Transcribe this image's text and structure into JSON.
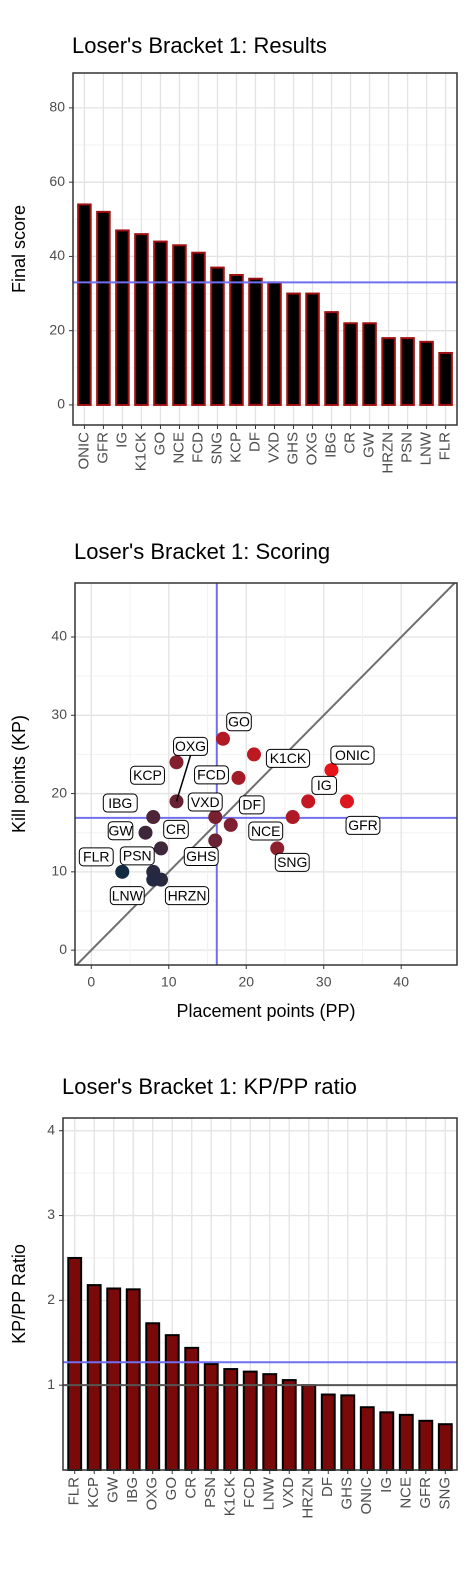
{
  "chart_data": [
    {
      "type": "bar",
      "title": "Loser's Bracket 1: Results",
      "y_label": "Final score",
      "categories": [
        "ONIC",
        "GFR",
        "IG",
        "K1CK",
        "GO",
        "NCE",
        "FCD",
        "SNG",
        "KCP",
        "DF",
        "VXD",
        "GHS",
        "OXG",
        "IBG",
        "CR",
        "GW",
        "HRZN",
        "PSN",
        "LNW",
        "FLR"
      ],
      "values": [
        54,
        52,
        47,
        46,
        44,
        43,
        41,
        37,
        35,
        34,
        33,
        30,
        30,
        25,
        22,
        22,
        18,
        18,
        17,
        14
      ],
      "color": "#000000",
      "edge_color": "#a01010",
      "ylim": [
        -5.4,
        89.4
      ],
      "yticks": [
        0,
        20,
        40,
        60,
        80
      ],
      "grid": true,
      "reference_lines": [
        {
          "value": 33,
          "color": "#7070ee"
        }
      ]
    },
    {
      "type": "scatter",
      "title": "Loser's Bracket 1: Scoring",
      "x_label": "Placement points (PP)",
      "y_label": "Kill points (KP)",
      "labels": [
        "ONIC",
        "GFR",
        "IG",
        "K1CK",
        "GO",
        "NCE",
        "FCD",
        "SNG",
        "KCP",
        "DF",
        "VXD",
        "GHS",
        "OXG",
        "IBG",
        "CR",
        "GW",
        "HRZN",
        "PSN",
        "LNW",
        "FLR"
      ],
      "x": [
        31,
        33,
        28,
        21,
        17,
        26,
        19,
        24,
        11,
        18,
        16,
        16,
        11,
        8,
        9,
        7,
        9,
        8,
        8,
        4
      ],
      "values": [
        23,
        19,
        19,
        25,
        27,
        17,
        22,
        13,
        24,
        16,
        17,
        14,
        19,
        17,
        13,
        15,
        9,
        10,
        9,
        10
      ],
      "color_scale": [
        "#132b43",
        "#e8141a"
      ],
      "xlim": [
        -2.1,
        47.2
      ],
      "ylim": [
        -1.9,
        46.9
      ],
      "xticks": [
        0,
        10,
        20,
        30,
        40
      ],
      "yticks": [
        0,
        10,
        20,
        30,
        40
      ],
      "grid": true,
      "identity_line": true,
      "identity_color": "#707070",
      "x_reference": 16.2,
      "y_reference": 16.9,
      "reference_color": "#7070ee"
    },
    {
      "type": "bar",
      "title": "Loser's Bracket 1: KP/PP ratio",
      "y_label": "KP/PP Ratio",
      "categories": [
        "FLR",
        "KCP",
        "GW",
        "IBG",
        "OXG",
        "GO",
        "CR",
        "PSN",
        "K1CK",
        "FCD",
        "LNW",
        "VXD",
        "HRZN",
        "DF",
        "GHS",
        "ONIC",
        "IG",
        "NCE",
        "GFR",
        "SNG"
      ],
      "values": [
        2.5,
        2.18,
        2.14,
        2.13,
        1.73,
        1.59,
        1.44,
        1.25,
        1.19,
        1.16,
        1.13,
        1.06,
        1.0,
        0.89,
        0.88,
        0.74,
        0.68,
        0.65,
        0.58,
        0.54
      ],
      "color": "#7a0a0a",
      "edge_color": "#000000",
      "ylim": [
        0,
        4.15
      ],
      "yticks": [
        1,
        2,
        3,
        4
      ],
      "grid": true,
      "reference_lines": [
        {
          "value": 1.27,
          "color": "#7070ee"
        },
        {
          "value": 1,
          "color": "#555555"
        }
      ]
    }
  ]
}
